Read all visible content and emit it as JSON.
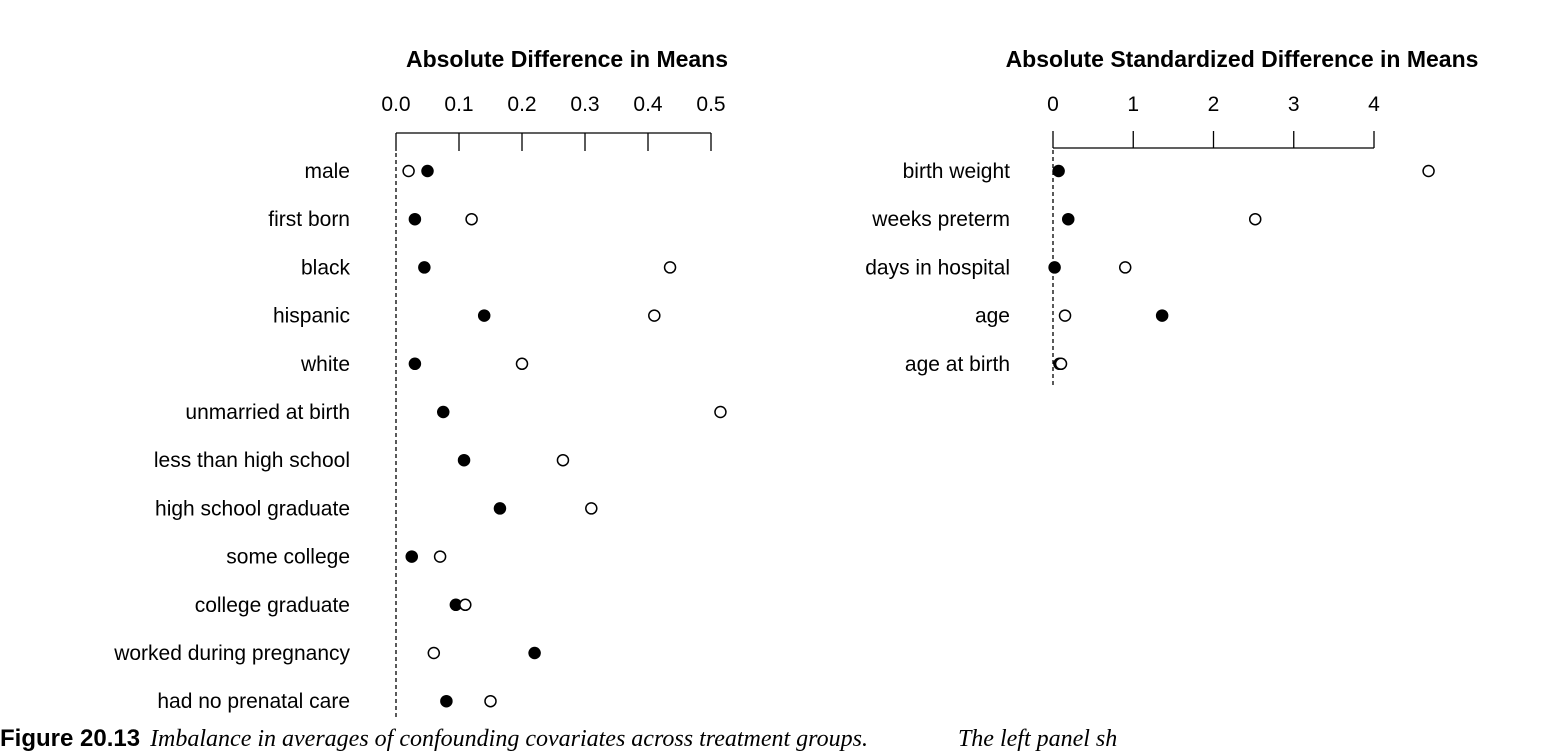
{
  "chart_data": [
    {
      "type": "scatter",
      "title": "Absolute Difference in Means",
      "x_ticks": [
        "0.0",
        "0.1",
        "0.2",
        "0.3",
        "0.4",
        "0.5"
      ],
      "xlim": [
        0.0,
        0.5
      ],
      "reference_line": 0,
      "categories": [
        "male",
        "first born",
        "black",
        "hispanic",
        "white",
        "unmarried at birth",
        "less than high school",
        "high school graduate",
        "some college",
        "college graduate",
        "worked during pregnancy",
        "had no prenatal care"
      ],
      "series": [
        {
          "name": "filled",
          "marker": "filled-circle",
          "values": [
            0.05,
            0.03,
            0.045,
            0.14,
            0.03,
            0.075,
            0.108,
            0.165,
            0.025,
            0.095,
            0.22,
            0.08
          ]
        },
        {
          "name": "open",
          "marker": "open-circle",
          "values": [
            0.02,
            0.12,
            0.435,
            0.41,
            0.2,
            0.515,
            0.265,
            0.31,
            0.07,
            0.11,
            0.06,
            0.15
          ]
        }
      ]
    },
    {
      "type": "scatter",
      "title": "Absolute Standardized Difference in Means",
      "x_ticks": [
        "0",
        "1",
        "2",
        "3",
        "4"
      ],
      "xlim": [
        0,
        4
      ],
      "reference_line": 0,
      "categories": [
        "birth weight",
        "weeks preterm",
        "days in hospital",
        "age",
        "age at birth"
      ],
      "series": [
        {
          "name": "filled",
          "marker": "filled-circle",
          "values": [
            0.07,
            0.19,
            0.02,
            1.36,
            0.08
          ]
        },
        {
          "name": "open",
          "marker": "open-circle",
          "values": [
            4.68,
            2.52,
            0.9,
            0.15,
            0.1
          ]
        }
      ]
    }
  ],
  "caption": {
    "label": "Figure 20.13",
    "text": "Imbalance in averages of confounding covariates across treatment groups.",
    "trailing_text": "The left panel sh"
  }
}
